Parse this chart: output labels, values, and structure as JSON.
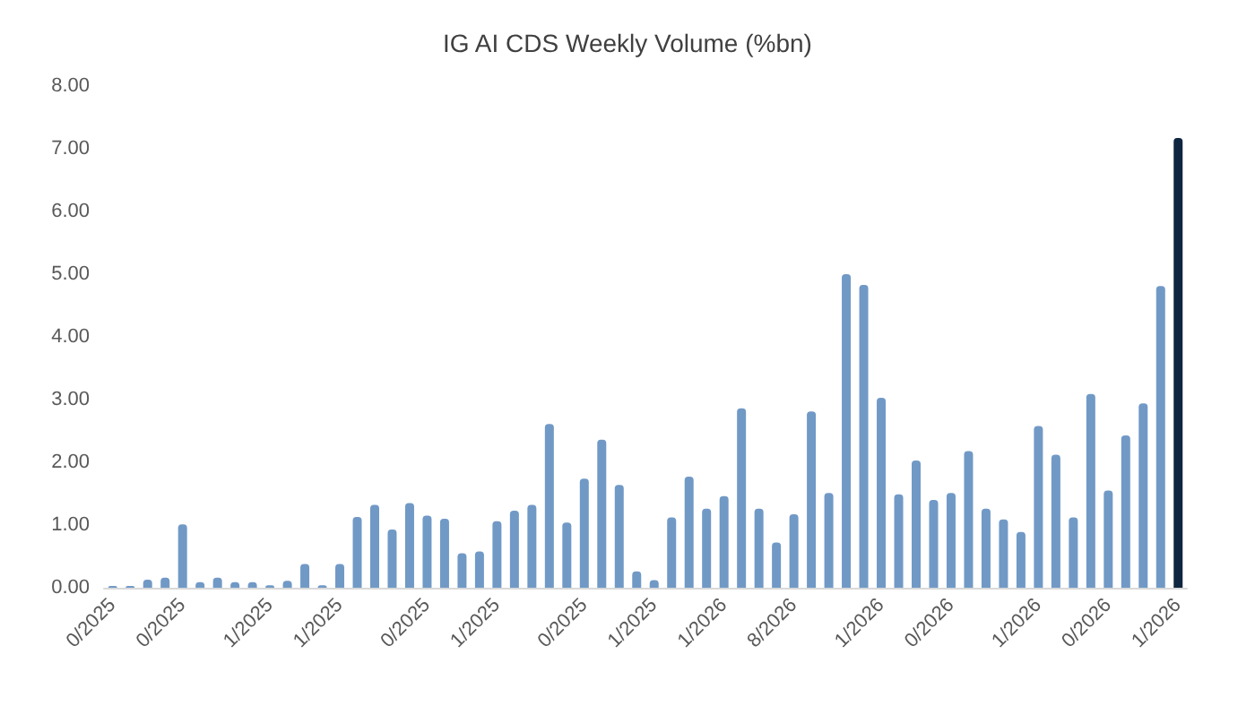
{
  "chart_data": {
    "type": "bar",
    "title": "IG AI CDS Weekly Volume (%bn)",
    "categories": [
      "0/2025",
      null,
      null,
      null,
      "0/2025",
      null,
      null,
      null,
      null,
      "1/2025",
      null,
      null,
      null,
      "1/2025",
      null,
      null,
      null,
      null,
      "0/2025",
      null,
      null,
      null,
      "1/2025",
      null,
      null,
      null,
      null,
      "0/2025",
      null,
      null,
      null,
      "1/2025",
      null,
      null,
      null,
      "1/2026",
      null,
      null,
      null,
      "8/2026",
      null,
      null,
      null,
      null,
      "1/2026",
      null,
      null,
      null,
      "0/2026",
      null,
      null,
      null,
      null,
      "1/2026",
      null,
      null,
      null,
      "0/2026",
      null,
      null,
      null,
      "1/2026"
    ],
    "values": [
      0.03,
      0.03,
      0.13,
      0.16,
      1.01,
      0.09,
      0.16,
      0.09,
      0.09,
      0.04,
      0.11,
      0.38,
      0.04,
      0.38,
      1.13,
      1.32,
      0.93,
      1.35,
      1.15,
      1.1,
      0.55,
      0.58,
      1.06,
      1.23,
      1.32,
      2.61,
      1.04,
      1.74,
      2.36,
      1.64,
      0.26,
      0.12,
      1.12,
      1.77,
      1.26,
      1.46,
      2.86,
      1.26,
      0.72,
      1.17,
      2.81,
      1.51,
      5.0,
      4.83,
      3.03,
      1.49,
      2.03,
      1.4,
      1.51,
      2.18,
      1.26,
      1.09,
      0.89,
      2.58,
      2.12,
      1.12,
      3.09,
      1.55,
      2.43,
      2.94,
      4.81,
      7.17
    ],
    "colors": [
      "#7199c6",
      "#7199c6",
      "#7199c6",
      "#7199c6",
      "#7199c6",
      "#7199c6",
      "#7199c6",
      "#7199c6",
      "#7199c6",
      "#7199c6",
      "#7199c6",
      "#7199c6",
      "#7199c6",
      "#7199c6",
      "#7199c6",
      "#7199c6",
      "#7199c6",
      "#7199c6",
      "#7199c6",
      "#7199c6",
      "#7199c6",
      "#7199c6",
      "#7199c6",
      "#7199c6",
      "#7199c6",
      "#7199c6",
      "#7199c6",
      "#7199c6",
      "#7199c6",
      "#7199c6",
      "#7199c6",
      "#7199c6",
      "#7199c6",
      "#7199c6",
      "#7199c6",
      "#7199c6",
      "#7199c6",
      "#7199c6",
      "#7199c6",
      "#7199c6",
      "#7199c6",
      "#7199c6",
      "#7199c6",
      "#7199c6",
      "#7199c6",
      "#7199c6",
      "#7199c6",
      "#7199c6",
      "#7199c6",
      "#7199c6",
      "#7199c6",
      "#7199c6",
      "#7199c6",
      "#7199c6",
      "#7199c6",
      "#7199c6",
      "#7199c6",
      "#7199c6",
      "#7199c6",
      "#7199c6",
      "#7199c6",
      "#0f2640"
    ],
    "ylim": [
      0,
      8
    ],
    "yticks": [
      {
        "value": 0,
        "label": "0.00"
      },
      {
        "value": 1,
        "label": "1.00"
      },
      {
        "value": 2,
        "label": "2.00"
      },
      {
        "value": 3,
        "label": "3.00"
      },
      {
        "value": 4,
        "label": "4.00"
      },
      {
        "value": 5,
        "label": "5.00"
      },
      {
        "value": 6,
        "label": "6.00"
      },
      {
        "value": 7,
        "label": "7.00"
      },
      {
        "value": 8,
        "label": "8.00"
      }
    ],
    "grid": false
  }
}
